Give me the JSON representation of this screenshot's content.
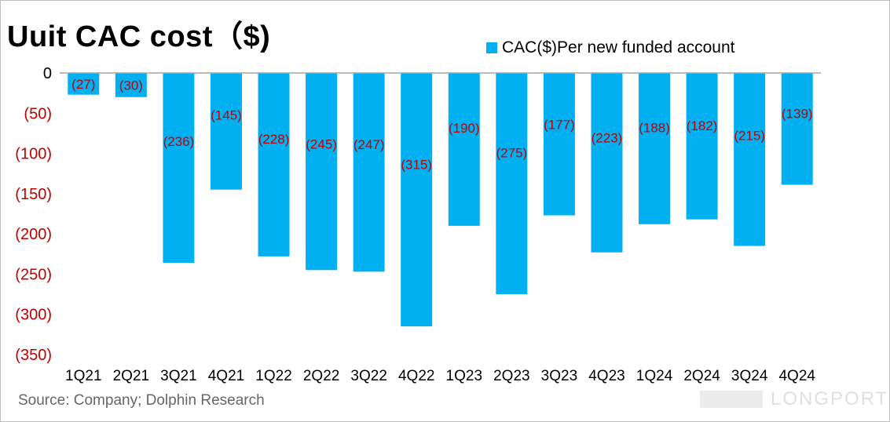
{
  "title": "Uuit CAC cost（$)",
  "source": "Source: Company; Dolphin Research",
  "watermark": "LONGPORT",
  "chart_data": {
    "type": "bar",
    "title": "Uuit CAC cost（$)",
    "categories": [
      "1Q21",
      "2Q21",
      "3Q21",
      "4Q21",
      "1Q22",
      "2Q22",
      "3Q22",
      "4Q22",
      "1Q23",
      "2Q23",
      "3Q23",
      "4Q23",
      "1Q24",
      "2Q24",
      "3Q24",
      "4Q24"
    ],
    "series": [
      {
        "name": "CAC($)Per new funded account",
        "values": [
          -27,
          -30,
          -236,
          -145,
          -228,
          -245,
          -247,
          -315,
          -190,
          -275,
          -177,
          -223,
          -188,
          -182,
          -215,
          -139
        ],
        "labels": [
          "(27)",
          "(30)",
          "(236)",
          "(145)",
          "(228)",
          "(245)",
          "(247)",
          "(315)",
          "(190)",
          "(275)",
          "(177)",
          "(223)",
          "(188)",
          "(182)",
          "(215)",
          "(139)"
        ]
      }
    ],
    "ylim": [
      -350,
      0
    ],
    "yticks": [
      0,
      -50,
      -100,
      -150,
      -200,
      -250,
      -300,
      -350
    ],
    "ytick_labels": [
      "0",
      "(50)",
      "(100)",
      "(150)",
      "(200)",
      "(250)",
      "(300)",
      "(350)"
    ],
    "xlabel": "",
    "ylabel": "",
    "legend": "top-right",
    "grid": false,
    "colors": {
      "bar": "#00b0f0",
      "data_label": "#c00000",
      "negative_tick": "#c00000",
      "zero_tick": "#000000",
      "axis": "#a6a6a6"
    }
  }
}
